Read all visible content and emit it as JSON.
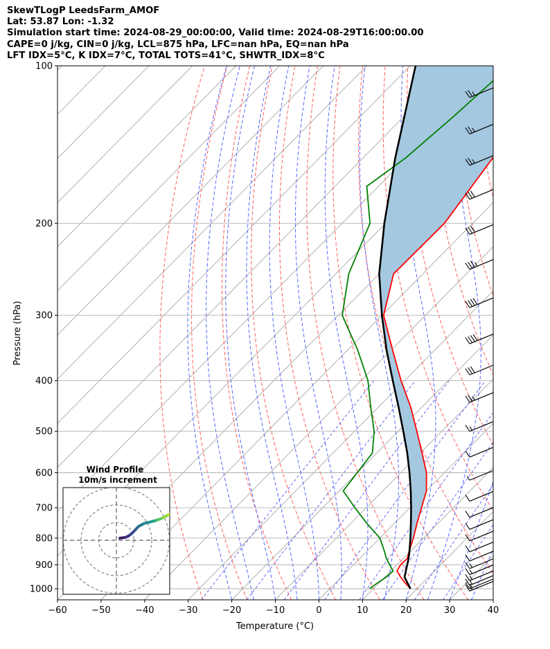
{
  "header": {
    "line1": "SkewTLogP LeedsFarm_AMOF",
    "line2": "Lat: 53.87   Lon: -1.32",
    "line3": "Simulation start time: 2024-08-29_00:00:00, Valid time: 2024-08-29T16:00:00.00",
    "line4": "CAPE=0 j/kg, CIN=0 j/kg, LCL=875 hPa, LFC=nan hPa, EQ=nan hPa",
    "line5": "LFT IDX=5°C, K IDX=7°C, TOTAL TOTS=41°C, SHWTR_IDX=8°C"
  },
  "chart_data": {
    "type": "line",
    "subtype": "skewT-logP",
    "xlabel": "Temperature (°C)",
    "ylabel": "Pressure (hPa)",
    "xlim": [
      -60,
      40
    ],
    "ylim": [
      1050,
      100
    ],
    "y_scale": "log",
    "x_ticks": [
      "−60",
      "−50",
      "−40",
      "−30",
      "−20",
      "−10",
      "0",
      "10",
      "20",
      "30",
      "40"
    ],
    "x_tick_values": [
      -60,
      -50,
      -40,
      -30,
      -20,
      -10,
      0,
      10,
      20,
      30,
      40
    ],
    "y_ticks": [
      "1000",
      "900",
      "800",
      "700",
      "600",
      "500",
      "400",
      "300",
      "200",
      "100"
    ],
    "y_tick_values": [
      1000,
      900,
      800,
      700,
      600,
      500,
      400,
      300,
      200,
      100
    ],
    "grid": true,
    "series": [
      {
        "role": "temperature",
        "color": "#ff0000",
        "p": [
          1000,
          975,
          950,
          925,
          900,
          875,
          850,
          800,
          750,
          700,
          650,
          600,
          550,
          500,
          450,
          400,
          350,
          300,
          250,
          200,
          150,
          125,
          100
        ],
        "t": [
          18.5,
          16.0,
          13.6,
          11.4,
          10.8,
          10.9,
          9.8,
          7.7,
          5.2,
          2.7,
          0.0,
          -4.1,
          -9.6,
          -15.7,
          -22.5,
          -30.8,
          -39.6,
          -49.6,
          -56.7,
          -56.5,
          -60.2,
          -61.5,
          -64.3
        ]
      },
      {
        "role": "dewpoint",
        "color": "#008000",
        "p": [
          1000,
          975,
          950,
          925,
          900,
          875,
          850,
          800,
          750,
          700,
          650,
          600,
          550,
          500,
          450,
          400,
          350,
          300,
          250,
          200,
          170,
          150,
          125,
          100
        ],
        "t": [
          9.1,
          9.6,
          10.3,
          10.5,
          8.3,
          6.1,
          4.2,
          0.0,
          -6.3,
          -12.6,
          -19.1,
          -20.0,
          -21.0,
          -25.5,
          -31.7,
          -38.4,
          -47.6,
          -59.1,
          -67.0,
          -73.6,
          -82.7,
          -80.2,
          -78.6,
          -77.2
        ]
      },
      {
        "role": "parcel",
        "color": "#000000",
        "p": [
          1000,
          950,
          875,
          850,
          800,
          750,
          700,
          650,
          600,
          550,
          500,
          450,
          400,
          350,
          300,
          250,
          200,
          150,
          100
        ],
        "t": [
          18.5,
          14.5,
          11.2,
          9.9,
          7.0,
          3.8,
          0.3,
          -3.6,
          -8.0,
          -13.0,
          -18.8,
          -25.3,
          -32.7,
          -41.0,
          -50.0,
          -60.0,
          -70.3,
          -82.6,
          -98.8
        ]
      }
    ],
    "shaded_region": "CIN area between temperature and parcel profile",
    "shade_color": "#a4c8e0",
    "wind_barbs": {
      "p": [
        1010,
        1000,
        985,
        965,
        940,
        915,
        885,
        850,
        810,
        770,
        730,
        680,
        620,
        560,
        500,
        440,
        390,
        340,
        290,
        245,
        210,
        180,
        155,
        135,
        115
      ],
      "speed_kt": [
        15,
        15,
        15,
        15,
        15,
        15,
        10,
        10,
        10,
        10,
        10,
        10,
        5,
        10,
        15,
        25,
        30,
        40,
        40,
        35,
        30,
        30,
        25,
        25,
        25
      ]
    },
    "dry_adiabat_color": "#ff5c5c",
    "moist_adiabat_color": "#5566ff",
    "mixing_ratio_color": "#6666ee",
    "isotherm_color": "#a8a8a8",
    "inset": {
      "title": "Wind Profile",
      "subtitle": "10m/s increment",
      "type": "hodograph",
      "u": [
        2,
        3.5,
        5,
        6.5,
        8,
        9.5,
        11,
        12.5,
        14,
        15.5,
        17,
        19,
        20.5,
        22,
        23.5,
        25,
        26.5,
        28,
        29.5,
        31,
        32,
        33
      ],
      "v": [
        1.2,
        1.4,
        1.6,
        2.2,
        3.2,
        4.6,
        6.2,
        7.8,
        8.6,
        9.4,
        9.9,
        10.3,
        10.7,
        11.1,
        11.6,
        12.1,
        12.8,
        13.6,
        14.4,
        15.1,
        15.7,
        16.0
      ]
    }
  }
}
